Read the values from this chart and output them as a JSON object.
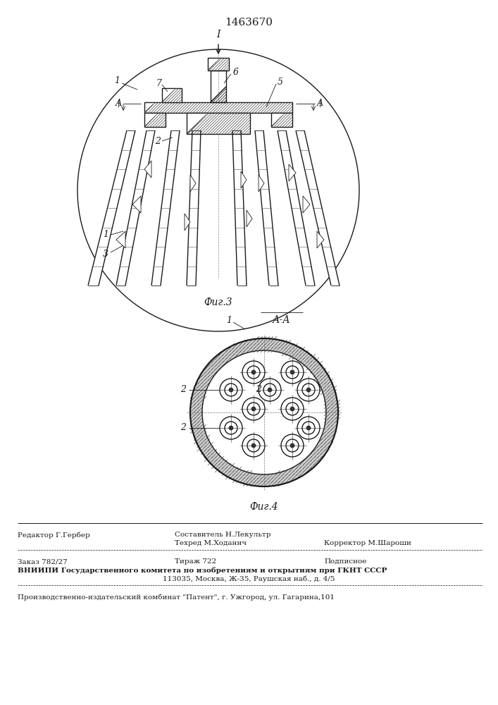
{
  "patent_number": "1463670",
  "fig3_label": "Фиг.3",
  "fig4_label": "Фиг.4",
  "section_label": "А-А",
  "label_I": "I",
  "footer": {
    "line1_left": "Редактор Г.Гербер",
    "line1_center": "Составитель Н.Лекультр",
    "line2_center": "Техред М.Ходанич",
    "line2_right": "Корректор М.Шароши",
    "line3_left": "Заказ 782/27",
    "line3_center": "Тираж 722",
    "line3_right": "Подписное",
    "line4": "ВНИИПИ Государственного комитета по изобретениям и открытиям при ГКНТ СССР",
    "line5": "113035, Москва, Ж-35, Раушская наб., д. 4/5",
    "line6": "Производственно-издательский комбинат \"Патент\", г. Ужгород, ул. Гагарина,101"
  },
  "bg_color": "#ffffff",
  "line_color": "#1a1a1a"
}
